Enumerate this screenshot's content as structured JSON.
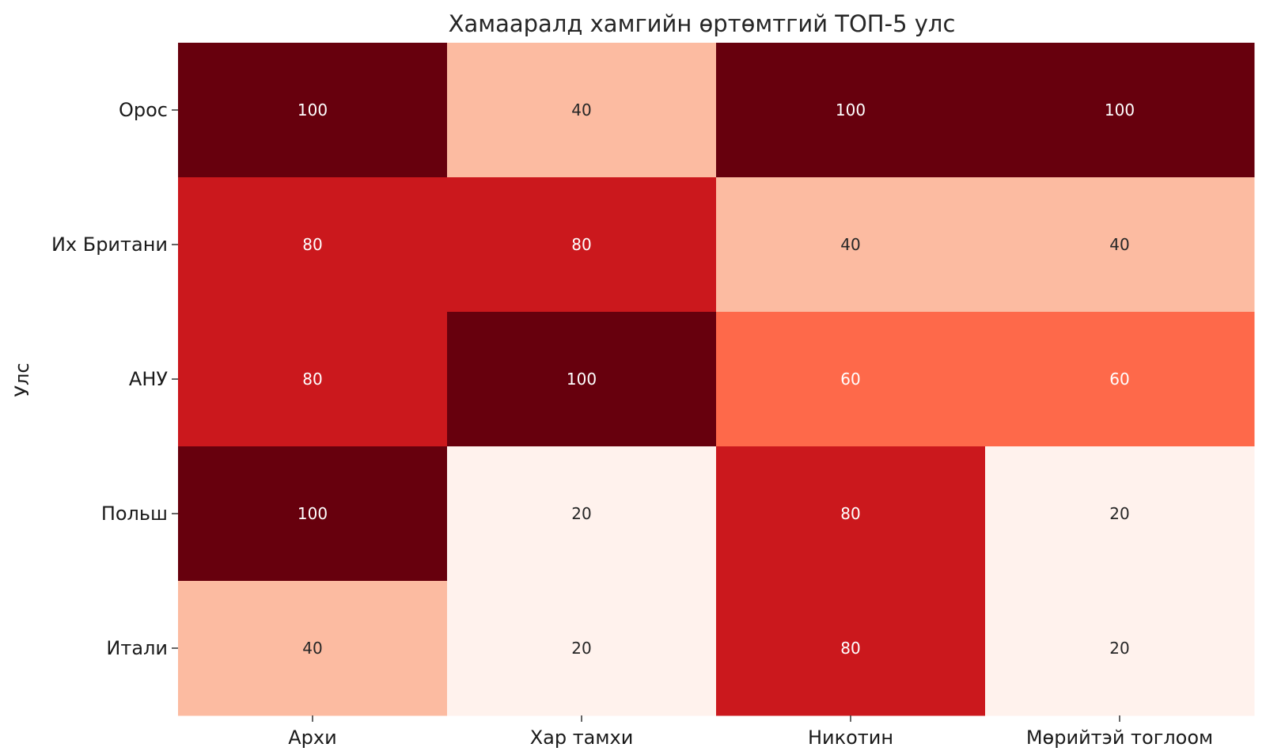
{
  "chart_data": {
    "type": "heatmap",
    "title": "Хамааралд хамгийн өртөмтгий ТОП-5 улс",
    "xlabel": "",
    "ylabel": "Улс",
    "columns": [
      "Архи",
      "Хар тамхи",
      "Никотин",
      "Мөрийтэй тоглоом"
    ],
    "rows": [
      "Орос",
      "Их Британи",
      "АНУ",
      "Польш",
      "Итали"
    ],
    "values": [
      [
        100,
        40,
        100,
        100
      ],
      [
        80,
        80,
        40,
        40
      ],
      [
        80,
        100,
        60,
        60
      ],
      [
        100,
        20,
        80,
        20
      ],
      [
        40,
        20,
        80,
        20
      ]
    ],
    "value_range": [
      20,
      100
    ],
    "colormap": "Reds",
    "colors": {
      "20": "#fff2ed",
      "40": "#fcbba1",
      "60": "#fe694a",
      "80": "#cb181d",
      "100": "#67000d"
    },
    "cell_text_colors": {
      "light": "#ffffff",
      "dark": "#262626"
    },
    "colorbar": false,
    "grid": false
  }
}
